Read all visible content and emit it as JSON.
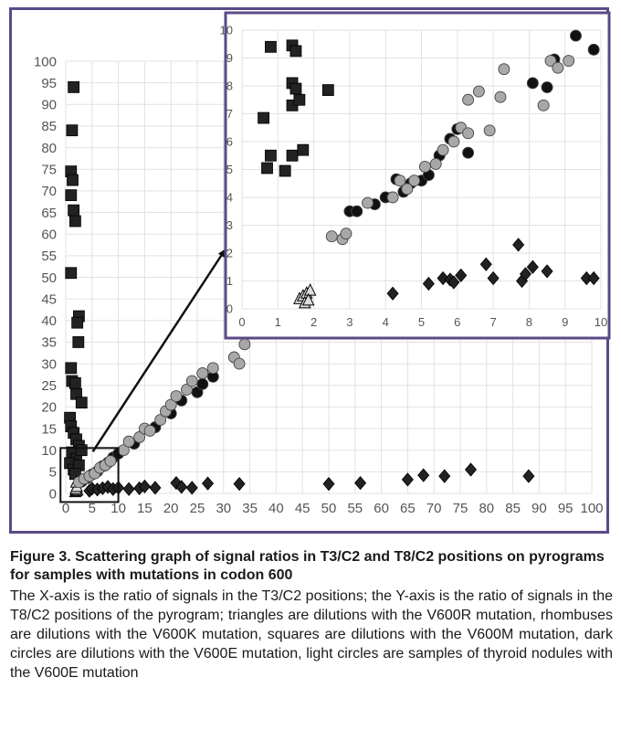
{
  "caption": {
    "title": "Figure 3. Scattering graph of signal ratios in T3/C2 and T8/C2 positions on pyrograms for samples with mutations in codon 600",
    "text": "The X-axis is the ratio of signals in the T3/C2 positions; the Y-axis is the ratio of signals in the T8/C2 positions of the pyrogram; triangles are dilutions with the V600R mutation, rhombuses are dilutions with the V600K mutation, squares are dilutions with the V600M mutation, dark circles are dilutions with the V600E mutation, light circles are samples of thyroid nodules with the V600E mutation"
  },
  "chart_data": [
    {
      "type": "scatter",
      "panel": "main",
      "xlim": [
        0,
        100
      ],
      "ylim": [
        0,
        100
      ],
      "xticks": [
        0,
        5,
        10,
        15,
        20,
        25,
        30,
        35,
        40,
        45,
        50,
        55,
        60,
        65,
        70,
        75,
        80,
        85,
        90,
        95,
        100
      ],
      "yticks": [
        0,
        5,
        10,
        15,
        20,
        25,
        30,
        35,
        40,
        45,
        50,
        55,
        60,
        65,
        70,
        75,
        80,
        85,
        90,
        95,
        100
      ],
      "grid": true,
      "xlabel": "",
      "ylabel": "",
      "series": [
        {
          "key": "squares",
          "marker": "square",
          "color": "#222222",
          "points": [
            [
              1.5,
              94
            ],
            [
              1.2,
              84
            ],
            [
              1,
              74.5
            ],
            [
              1.3,
              72.5
            ],
            [
              1,
              69
            ],
            [
              1.5,
              65.5
            ],
            [
              1.8,
              63
            ],
            [
              1,
              51
            ],
            [
              2.5,
              41
            ],
            [
              2.2,
              39.5
            ],
            [
              2.4,
              35
            ],
            [
              1,
              29
            ],
            [
              1.2,
              26
            ],
            [
              1.8,
              25.5
            ],
            [
              2,
              23
            ],
            [
              3,
              21
            ],
            [
              0.8,
              17.5
            ],
            [
              1,
              15.5
            ],
            [
              1.5,
              14
            ],
            [
              2,
              12.5
            ],
            [
              2.5,
              11
            ],
            [
              1.2,
              9.5
            ],
            [
              2,
              8
            ],
            [
              0.8,
              7
            ],
            [
              1.5,
              5.5
            ],
            [
              2.5,
              6.5
            ],
            [
              3,
              10
            ],
            [
              1.8,
              4.5
            ]
          ]
        },
        {
          "key": "triangles",
          "marker": "triangle",
          "color": "#dddddd",
          "points": [
            [
              1.8,
              0.3
            ],
            [
              2,
              0.5
            ],
            [
              2.2,
              0.7
            ],
            [
              1.9,
              1.0
            ],
            [
              2.1,
              1.5
            ],
            [
              2,
              2.5
            ]
          ]
        },
        {
          "key": "rhombuses",
          "marker": "diamond",
          "color": "#222222",
          "points": [
            [
              4.5,
              0.6
            ],
            [
              5,
              1.1
            ],
            [
              6,
              0.9
            ],
            [
              7,
              1.2
            ],
            [
              8,
              1.5
            ],
            [
              9,
              1.0
            ],
            [
              10,
              1.3
            ],
            [
              12,
              1.0
            ],
            [
              14,
              1.2
            ],
            [
              15,
              1.6
            ],
            [
              17,
              1.3
            ],
            [
              21,
              2.4
            ],
            [
              22,
              1.5
            ],
            [
              24,
              1.3
            ],
            [
              27,
              2.3
            ],
            [
              33,
              2.2
            ],
            [
              50,
              2.2
            ],
            [
              56,
              2.4
            ],
            [
              65,
              3.2
            ],
            [
              68,
              4.2
            ],
            [
              72,
              4.0
            ],
            [
              77,
              5.5
            ],
            [
              88,
              4.0
            ]
          ]
        },
        {
          "key": "dark circles",
          "marker": "circle",
          "color": "#111111",
          "points": [
            [
              3,
              2.7
            ],
            [
              4,
              3.5
            ],
            [
              5,
              4.4
            ],
            [
              6,
              5.1
            ],
            [
              7,
              6.3
            ],
            [
              8,
              7.1
            ],
            [
              9,
              8.3
            ],
            [
              10,
              9.2
            ],
            [
              13,
              11.5
            ],
            [
              17,
              15.3
            ],
            [
              20,
              18.5
            ],
            [
              22,
              21.5
            ],
            [
              25,
              23.4
            ],
            [
              26,
              25.3
            ],
            [
              28,
              27
            ]
          ]
        },
        {
          "key": "light circles",
          "marker": "circle",
          "color": "#a8a8a8",
          "points": [
            [
              2.5,
              2.6
            ],
            [
              3.5,
              3.4
            ],
            [
              4.5,
              4.0
            ],
            [
              5.5,
              4.6
            ],
            [
              6.5,
              5.9
            ],
            [
              7.5,
              6.5
            ],
            [
              8.5,
              7.5
            ],
            [
              11,
              10
            ],
            [
              12,
              12
            ],
            [
              14,
              13
            ],
            [
              15,
              15
            ],
            [
              16,
              14.5
            ],
            [
              18,
              17
            ],
            [
              19,
              19
            ],
            [
              20,
              20.5
            ],
            [
              21,
              22.5
            ],
            [
              23,
              24
            ],
            [
              24,
              26
            ],
            [
              26,
              27.8
            ],
            [
              28,
              29
            ],
            [
              32,
              31.5
            ],
            [
              33,
              30
            ],
            [
              34,
              34.5
            ]
          ]
        }
      ]
    },
    {
      "type": "scatter",
      "panel": "inset",
      "xlim": [
        0,
        10
      ],
      "ylim": [
        0,
        10
      ],
      "xticks": [
        0,
        1,
        2,
        3,
        4,
        5,
        6,
        7,
        8,
        9,
        10
      ],
      "yticks": [
        0,
        1,
        2,
        3,
        4,
        5,
        6,
        7,
        8,
        9,
        10
      ],
      "grid": true,
      "xlabel": "",
      "ylabel": "",
      "series": [
        {
          "key": "squares",
          "marker": "square",
          "color": "#222222",
          "points": [
            [
              0.8,
              9.4
            ],
            [
              1.4,
              9.45
            ],
            [
              1.5,
              9.25
            ],
            [
              1.4,
              8.1
            ],
            [
              1.5,
              7.9
            ],
            [
              1.4,
              7.3
            ],
            [
              1.6,
              7.5
            ],
            [
              2.4,
              7.85
            ],
            [
              0.6,
              6.85
            ],
            [
              0.8,
              5.5
            ],
            [
              1.4,
              5.5
            ],
            [
              1.7,
              5.7
            ],
            [
              0.7,
              5.05
            ],
            [
              1.2,
              4.95
            ]
          ]
        },
        {
          "key": "triangles",
          "marker": "triangle",
          "color": "#dddddd",
          "points": [
            [
              1.6,
              0.35
            ],
            [
              1.7,
              0.45
            ],
            [
              1.8,
              0.55
            ],
            [
              1.9,
              0.65
            ],
            [
              1.75,
              0.2
            ],
            [
              1.85,
              0.3
            ]
          ]
        },
        {
          "key": "rhombuses",
          "marker": "diamond",
          "color": "#222222",
          "points": [
            [
              4.2,
              0.55
            ],
            [
              5.2,
              0.9
            ],
            [
              5.6,
              1.1
            ],
            [
              5.8,
              1.05
            ],
            [
              5.9,
              0.95
            ],
            [
              6.1,
              1.2
            ],
            [
              6.8,
              1.6
            ],
            [
              7,
              1.1
            ],
            [
              7.7,
              2.3
            ],
            [
              7.8,
              1.0
            ],
            [
              7.9,
              1.25
            ],
            [
              8.1,
              1.5
            ],
            [
              8.5,
              1.35
            ],
            [
              9.6,
              1.1
            ],
            [
              9.8,
              1.1
            ]
          ]
        },
        {
          "key": "dark circles",
          "marker": "circle",
          "color": "#111111",
          "points": [
            [
              3,
              3.5
            ],
            [
              3.2,
              3.5
            ],
            [
              3.7,
              3.75
            ],
            [
              4,
              4.0
            ],
            [
              4.3,
              4.65
            ],
            [
              4.5,
              4.2
            ],
            [
              4.7,
              4.5
            ],
            [
              5.0,
              4.6
            ],
            [
              5.2,
              4.8
            ],
            [
              5.5,
              5.5
            ],
            [
              5.8,
              6.1
            ],
            [
              6.0,
              6.45
            ],
            [
              6.3,
              5.6
            ],
            [
              8.1,
              8.1
            ],
            [
              8.5,
              7.95
            ],
            [
              8.7,
              8.95
            ],
            [
              9.3,
              9.8
            ],
            [
              9.8,
              9.3
            ]
          ]
        },
        {
          "key": "light circles",
          "marker": "circle",
          "color": "#a8a8a8",
          "points": [
            [
              2.5,
              2.6
            ],
            [
              2.8,
              2.5
            ],
            [
              2.9,
              2.7
            ],
            [
              3.5,
              3.8
            ],
            [
              4.2,
              4.0
            ],
            [
              4.4,
              4.6
            ],
            [
              4.6,
              4.3
            ],
            [
              4.8,
              4.6
            ],
            [
              5.1,
              5.1
            ],
            [
              5.4,
              5.2
            ],
            [
              5.6,
              5.7
            ],
            [
              5.9,
              6.0
            ],
            [
              6.1,
              6.5
            ],
            [
              6.3,
              6.3
            ],
            [
              6.3,
              7.5
            ],
            [
              6.6,
              7.8
            ],
            [
              6.9,
              6.4
            ],
            [
              7.2,
              7.6
            ],
            [
              7.3,
              8.6
            ],
            [
              8.4,
              7.3
            ],
            [
              8.6,
              8.9
            ],
            [
              8.8,
              8.65
            ],
            [
              9.1,
              8.9
            ]
          ]
        }
      ]
    }
  ]
}
